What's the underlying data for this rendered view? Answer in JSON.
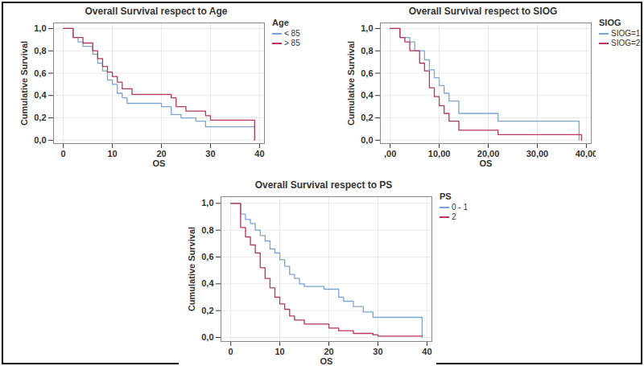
{
  "chart_data": [
    {
      "type": "step",
      "title": "Overall Survival respect to Age",
      "x_label": "OS",
      "y_label": "Cumulative Survival",
      "legend_title": "Age",
      "legend": "top-right",
      "grid": true,
      "xlim": [
        -2,
        41
      ],
      "xticks": [
        0,
        10,
        20,
        30,
        40
      ],
      "ylim": [
        -0.03,
        1.05
      ],
      "yticks": [
        {
          "value": 0,
          "label": "0,0"
        },
        {
          "value": 0.2,
          "label": "0,2"
        },
        {
          "value": 0.4,
          "label": "0,4"
        },
        {
          "value": 0.6,
          "label": "0,6"
        },
        {
          "value": 0.8,
          "label": "0,8"
        },
        {
          "value": 1,
          "label": "1,0"
        }
      ],
      "series": [
        {
          "name": "< 85",
          "color": "#7aa6d6",
          "x": [
            0,
            2,
            3,
            4,
            6,
            7,
            8,
            9,
            10,
            11,
            12,
            13,
            20,
            22,
            24,
            27,
            29,
            39
          ],
          "values": [
            1.0,
            0.92,
            0.88,
            0.84,
            0.77,
            0.69,
            0.62,
            0.54,
            0.5,
            0.42,
            0.38,
            0.33,
            0.3,
            0.23,
            0.2,
            0.17,
            0.12,
            0.12
          ]
        },
        {
          "name": "> 85",
          "color": "#b8365a",
          "x": [
            0,
            2,
            4,
            6,
            7,
            8,
            9,
            10,
            11,
            12,
            14,
            22,
            23,
            25,
            29,
            30,
            39
          ],
          "values": [
            1.0,
            0.92,
            0.87,
            0.8,
            0.73,
            0.66,
            0.61,
            0.57,
            0.52,
            0.46,
            0.41,
            0.38,
            0.3,
            0.26,
            0.22,
            0.18,
            0.0
          ]
        }
      ]
    },
    {
      "type": "step",
      "title": "Overall Survival respect to SIOG",
      "x_label": "OS",
      "y_label": "Cumulative Survival",
      "legend_title": "SIOG",
      "legend": "top-right",
      "grid": true,
      "xlim": [
        -2,
        41
      ],
      "xticks": [
        {
          "value": 0,
          "label": ",00"
        },
        {
          "value": 10,
          "label": "10,00"
        },
        {
          "value": 20,
          "label": "20,00"
        },
        {
          "value": 30,
          "label": "30,00"
        },
        {
          "value": 40,
          "label": "40,00"
        }
      ],
      "ylim": [
        -0.03,
        1.05
      ],
      "yticks": [
        {
          "value": 0,
          "label": "0,0"
        },
        {
          "value": 0.2,
          "label": "0,2"
        },
        {
          "value": 0.4,
          "label": "0,4"
        },
        {
          "value": 0.6,
          "label": "0,6"
        },
        {
          "value": 0.8,
          "label": "0,8"
        },
        {
          "value": 1,
          "label": "1,0"
        }
      ],
      "series": [
        {
          "name": "SIOG=1",
          "color": "#7aa6d6",
          "x": [
            0,
            2,
            4,
            5,
            7,
            8,
            9,
            10,
            11,
            12,
            14,
            22,
            38.5
          ],
          "values": [
            1.0,
            0.92,
            0.88,
            0.8,
            0.72,
            0.63,
            0.56,
            0.49,
            0.42,
            0.35,
            0.24,
            0.17,
            0.0
          ]
        },
        {
          "name": "SIOG=2",
          "color": "#b8365a",
          "x": [
            0,
            2,
            3,
            4,
            6,
            7,
            8,
            9,
            10,
            11,
            12,
            14,
            22,
            39
          ],
          "values": [
            1.0,
            0.92,
            0.88,
            0.8,
            0.69,
            0.62,
            0.47,
            0.39,
            0.31,
            0.24,
            0.17,
            0.09,
            0.05,
            0.0
          ]
        }
      ]
    },
    {
      "type": "step",
      "title": "Overall Survival respect to PS",
      "x_label": "OS",
      "y_label": "Cumulative Survival",
      "legend_title": "PS",
      "legend": "top-right",
      "grid": true,
      "xlim": [
        -2,
        41
      ],
      "xticks": [
        0,
        10,
        20,
        30,
        40
      ],
      "ylim": [
        -0.03,
        1.05
      ],
      "yticks": [
        {
          "value": 0,
          "label": "0,0"
        },
        {
          "value": 0.2,
          "label": "0,2"
        },
        {
          "value": 0.4,
          "label": "0,4"
        },
        {
          "value": 0.6,
          "label": "0,6"
        },
        {
          "value": 0.8,
          "label": "0,8"
        },
        {
          "value": 1,
          "label": "1,0"
        }
      ],
      "series": [
        {
          "name": "0 - 1",
          "color": "#7aa6d6",
          "x": [
            0,
            2,
            3,
            4,
            5,
            6,
            7,
            8,
            9,
            10,
            11,
            12,
            13,
            14,
            15,
            19,
            22,
            23,
            25,
            27,
            29,
            39
          ],
          "values": [
            1.0,
            0.92,
            0.88,
            0.85,
            0.8,
            0.76,
            0.72,
            0.66,
            0.63,
            0.58,
            0.53,
            0.47,
            0.44,
            0.4,
            0.38,
            0.36,
            0.3,
            0.27,
            0.23,
            0.19,
            0.15,
            0.0
          ]
        },
        {
          "name": "2",
          "color": "#b8365a",
          "x": [
            0,
            2,
            3,
            4,
            5,
            6,
            7,
            8,
            9,
            10,
            11,
            12,
            13,
            15,
            20,
            22,
            25,
            29,
            30,
            39
          ],
          "values": [
            1.0,
            0.82,
            0.75,
            0.69,
            0.63,
            0.52,
            0.44,
            0.37,
            0.3,
            0.25,
            0.21,
            0.16,
            0.13,
            0.1,
            0.07,
            0.05,
            0.03,
            0.02,
            0.01,
            0.01
          ]
        }
      ]
    }
  ]
}
